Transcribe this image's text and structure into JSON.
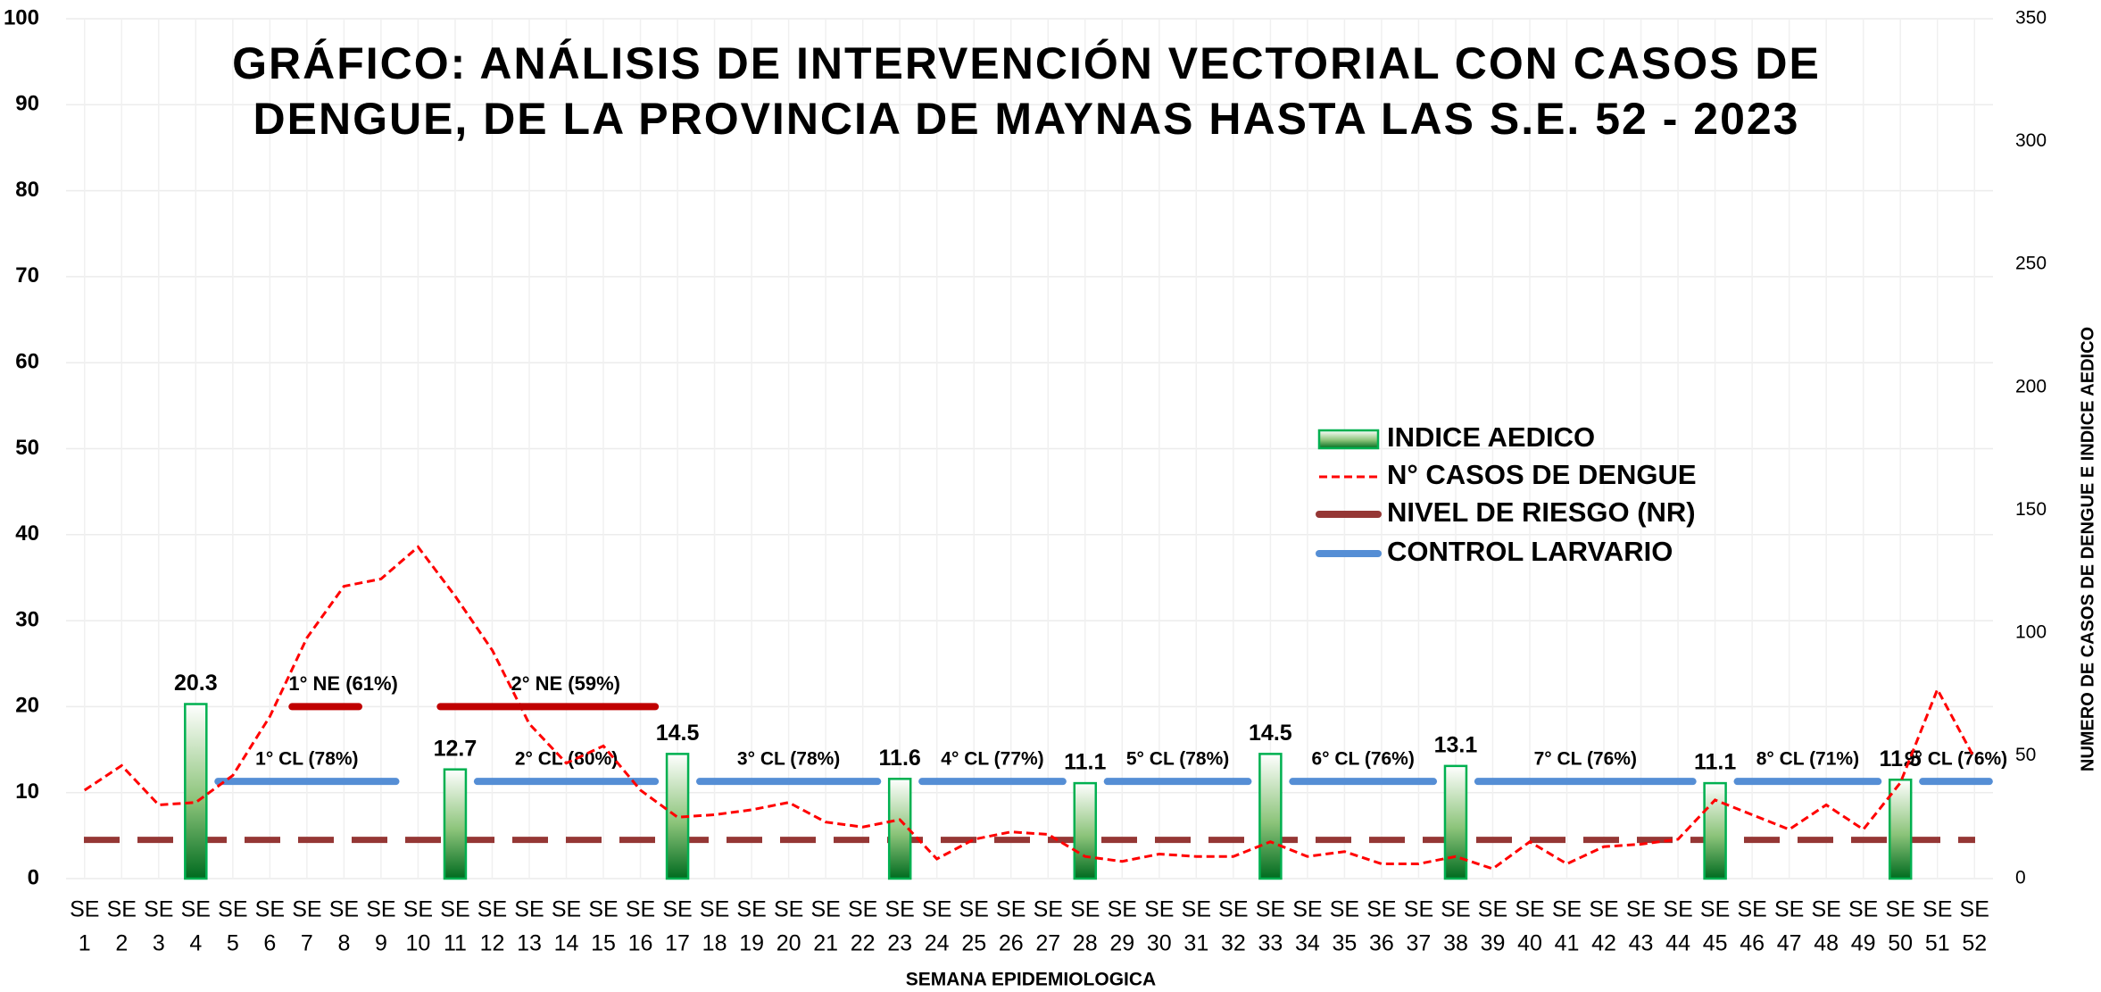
{
  "chart_data": {
    "type": "combo",
    "title": [
      "GRÁFICO: ANÁLISIS DE INTERVENCIÓN VECTORIAL CON CASOS DE",
      "DENGUE, DE LA PROVINCIA DE MAYNAS HASTA LAS S.E. 52 -  2023"
    ],
    "x_label": "SEMANA EPIDEMIOLOGICA",
    "y2_label": "NUMERO DE CASOS DE DENGUE E INDICE AEDICO",
    "x_prefix": "SE",
    "categories": [
      1,
      2,
      3,
      4,
      5,
      6,
      7,
      8,
      9,
      10,
      11,
      12,
      13,
      14,
      15,
      16,
      17,
      18,
      19,
      20,
      21,
      22,
      23,
      24,
      25,
      26,
      27,
      28,
      29,
      30,
      31,
      32,
      33,
      34,
      35,
      36,
      37,
      38,
      39,
      40,
      41,
      42,
      43,
      44,
      45,
      46,
      47,
      48,
      49,
      50,
      51,
      52
    ],
    "ylim": [
      0,
      100
    ],
    "yticks": [
      0,
      10,
      20,
      30,
      40,
      50,
      60,
      70,
      80,
      90,
      100
    ],
    "y2lim": [
      0,
      350
    ],
    "y2ticks": [
      0,
      50,
      100,
      150,
      200,
      250,
      300,
      350
    ],
    "grid": true,
    "legend": "right",
    "series": [
      {
        "name": "INDICE  AEDICO",
        "type": "bar",
        "color": "#00b050",
        "values": [
          null,
          null,
          null,
          20.3,
          null,
          null,
          null,
          null,
          null,
          null,
          12.7,
          null,
          null,
          null,
          null,
          null,
          14.5,
          null,
          null,
          null,
          null,
          null,
          11.6,
          null,
          null,
          null,
          null,
          11.1,
          null,
          null,
          null,
          null,
          14.5,
          null,
          null,
          null,
          null,
          13.1,
          null,
          null,
          null,
          null,
          null,
          null,
          11.1,
          null,
          null,
          null,
          null,
          11.5,
          null,
          null
        ]
      },
      {
        "name": "N° CASOS DE DENGUE",
        "type": "line",
        "axis": "y2",
        "color": "#ff0000",
        "values": [
          36,
          46,
          30,
          31,
          42,
          66,
          98,
          119,
          122,
          135,
          115,
          93,
          63,
          47,
          54,
          36,
          25,
          26,
          28,
          31,
          23,
          21,
          24,
          8,
          16,
          19,
          18,
          9,
          7,
          10,
          9,
          9,
          15,
          9,
          11,
          6,
          6,
          9,
          4,
          15,
          6,
          13,
          14,
          16,
          32,
          26,
          20,
          30,
          20,
          39,
          77,
          49
        ]
      },
      {
        "name": "NIVEL DE RIESGO  (NR)",
        "type": "hline",
        "color": "#953735",
        "value": 4.5
      },
      {
        "name": "CONTROL LARVARIO",
        "type": "segments",
        "color": "#558ed5",
        "segments": [
          {
            "label": "1° CL (78%)",
            "start": 5,
            "end": 9,
            "value": 11.3
          },
          {
            "label": "2° CL (80%)",
            "start": 12,
            "end": 16,
            "value": 11.3
          },
          {
            "label": "3° CL (78%)",
            "start": 18,
            "end": 22,
            "value": 11.3
          },
          {
            "label": "4° CL (77%)",
            "start": 24,
            "end": 27,
            "value": 11.3
          },
          {
            "label": "5° CL (78%)",
            "start": 29,
            "end": 32,
            "value": 11.3
          },
          {
            "label": "6° CL (76%)",
            "start": 34,
            "end": 37,
            "value": 11.3
          },
          {
            "label": "7° CL (76%)",
            "start": 39,
            "end": 44,
            "value": 11.3
          },
          {
            "label": "8° CL (71%)",
            "start": 46,
            "end": 49,
            "value": 11.3
          },
          {
            "label": "9° CL (76%)",
            "start": 51,
            "end": 52,
            "value": 11.3
          }
        ]
      }
    ],
    "nebulization": {
      "color": "#c00000",
      "segments": [
        {
          "label": "1° NE (61%)",
          "start": 7,
          "end": 8,
          "value": 20
        },
        {
          "label": "2° NE (59%)",
          "start": 11,
          "end": 16,
          "value": 20
        }
      ]
    }
  }
}
